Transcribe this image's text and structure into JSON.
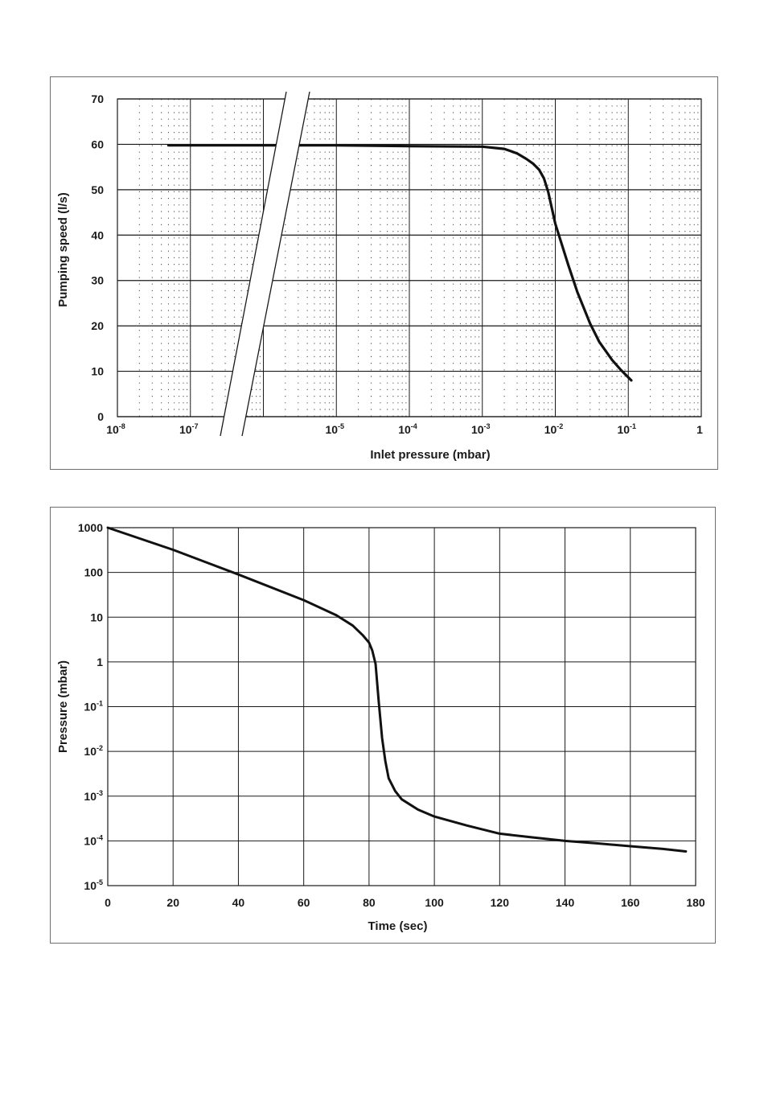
{
  "chart_data": [
    {
      "type": "line",
      "xlabel": "Inlet pressure (mbar)",
      "ylabel": "Pumping speed (l/s)",
      "x_scale": "log",
      "xlim": [
        1e-08,
        1
      ],
      "ylim": [
        0,
        70
      ],
      "grid": true,
      "x_tick_labels": [
        {
          "base": "10",
          "exp": "-8"
        },
        {
          "base": "10",
          "exp": "-7"
        },
        {
          "base": "10",
          "exp": "-5"
        },
        {
          "base": "10",
          "exp": "-4"
        },
        {
          "base": "10",
          "exp": "-3"
        },
        {
          "base": "10",
          "exp": "-2"
        },
        {
          "base": "10",
          "exp": "-1"
        },
        {
          "base": "1",
          "exp": ""
        }
      ],
      "y_tick_labels": [
        "0",
        "10",
        "20",
        "30",
        "40",
        "50",
        "60",
        "70"
      ],
      "axis_break": "between 10^-7 and 10^-5",
      "series": [
        {
          "x": [
            5e-08,
            1e-07,
            1e-05,
            0.0001,
            0.001,
            0.002,
            0.003,
            0.004,
            0.005,
            0.006,
            0.007,
            0.008,
            0.01,
            0.015,
            0.02,
            0.03,
            0.04,
            0.06,
            0.08,
            0.11
          ],
          "y": [
            59.8,
            59.8,
            59.8,
            59.6,
            59.5,
            59.0,
            58.0,
            56.8,
            55.7,
            54.4,
            52.5,
            49.5,
            42.5,
            33.5,
            27.5,
            20.5,
            16.5,
            12.5,
            10.2,
            8.0
          ]
        }
      ]
    },
    {
      "type": "line",
      "xlabel": "Time (sec)",
      "ylabel": "Pressure (mbar)",
      "y_scale": "log",
      "xlim": [
        0,
        180
      ],
      "ylim": [
        1e-05,
        1000
      ],
      "grid": true,
      "x_tick_labels": [
        "0",
        "20",
        "40",
        "60",
        "80",
        "100",
        "120",
        "140",
        "160",
        "180"
      ],
      "y_tick_labels": [
        {
          "base": "1000",
          "exp": ""
        },
        {
          "base": "100",
          "exp": ""
        },
        {
          "base": "10",
          "exp": ""
        },
        {
          "base": "1",
          "exp": ""
        },
        {
          "base": "10",
          "exp": "-1"
        },
        {
          "base": "10",
          "exp": "-2"
        },
        {
          "base": "10",
          "exp": "-3"
        },
        {
          "base": "10",
          "exp": "-4"
        },
        {
          "base": "10",
          "exp": "-5"
        }
      ],
      "series": [
        {
          "x": [
            0,
            20,
            40,
            60,
            70,
            75,
            78,
            80,
            81,
            82,
            83,
            84,
            85,
            86,
            88,
            90,
            95,
            100,
            110,
            120,
            130,
            140,
            150,
            160,
            170,
            177
          ],
          "y": [
            1000,
            320,
            90,
            24,
            11,
            6.5,
            4.0,
            2.7,
            1.8,
            0.9,
            0.12,
            0.02,
            0.006,
            0.0025,
            0.0013,
            0.00085,
            0.0005,
            0.00035,
            0.00022,
            0.000145,
            0.00012,
            0.0001,
            8.8e-05,
            7.6e-05,
            6.6e-05,
            5.8e-05
          ]
        }
      ]
    }
  ]
}
